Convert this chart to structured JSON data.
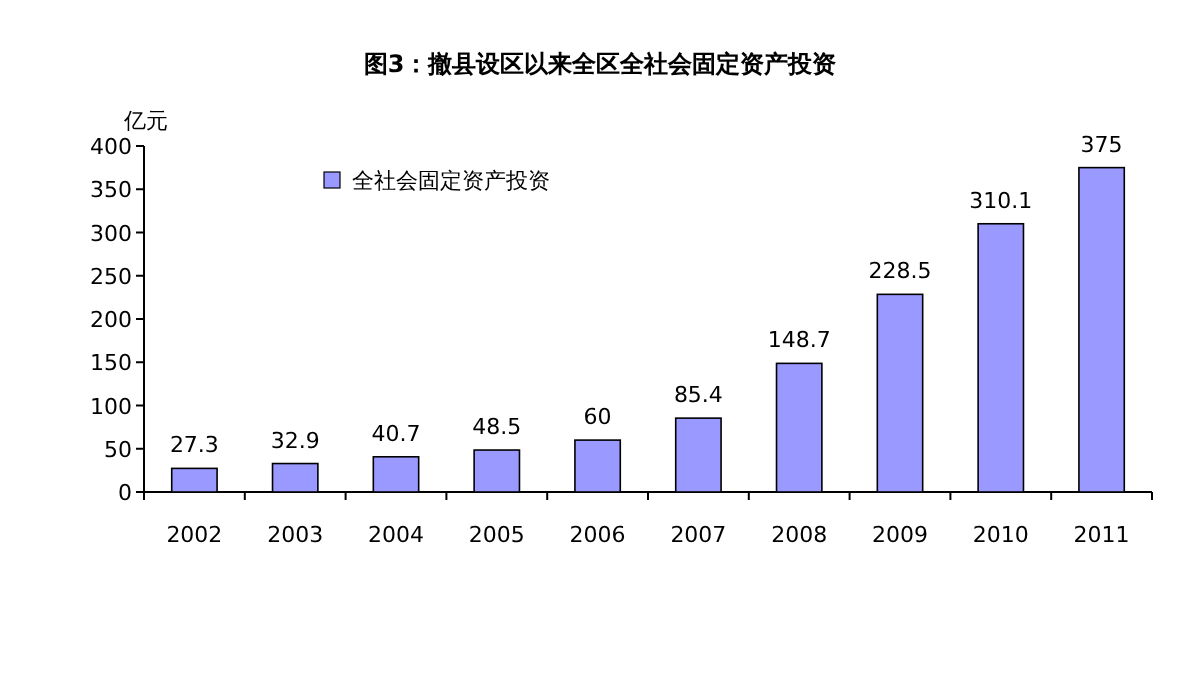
{
  "chart_data": {
    "type": "bar",
    "title": "图3：撤县设区以来全区全社会固定资产投资",
    "ylabel": "亿元",
    "categories": [
      "2002",
      "2003",
      "2004",
      "2005",
      "2006",
      "2007",
      "2008",
      "2009",
      "2010",
      "2011"
    ],
    "series": [
      {
        "name": "全社会固定资产投资",
        "color": "#9999ff",
        "values": [
          27.3,
          32.9,
          40.7,
          48.5,
          60,
          85.4,
          148.7,
          228.5,
          310.1,
          375
        ]
      }
    ],
    "ylim": [
      0,
      400
    ],
    "yticks": [
      0,
      50,
      100,
      150,
      200,
      250,
      300,
      350,
      400
    ],
    "data_labels": true,
    "legend": "top left"
  }
}
